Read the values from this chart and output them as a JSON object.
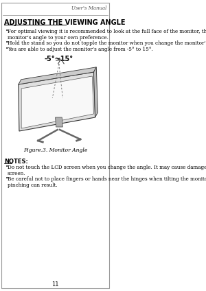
{
  "bg_color": "#ffffff",
  "header_text": "User's Manual",
  "title": "ADJUSTING THE VIEWING ANGLE",
  "bullets": [
    "For optimal viewing it is recommended to look at the full face of the monitor, then adjust the\nmonitor’s angle to your own preference.",
    "Hold the stand so you do not topple the monitor when you change the monitor’s angle.",
    "You are able to adjust the monitor’s angle from -5° to 15°."
  ],
  "angle_label": "-5°~15°",
  "figure_caption": "Figure.3. Monitor Angle",
  "notes_title": "NOTES:",
  "notes_bullets": [
    "Do not touch the LCD screen when you change the angle. It may cause damage or break the LCD\nscreen.",
    "Be careful not to place fingers or hands near the hinges when tilting the monitor, otherwise\npinching can result."
  ],
  "page_number": "11",
  "text_color": "#000000",
  "header_color": "#555555"
}
